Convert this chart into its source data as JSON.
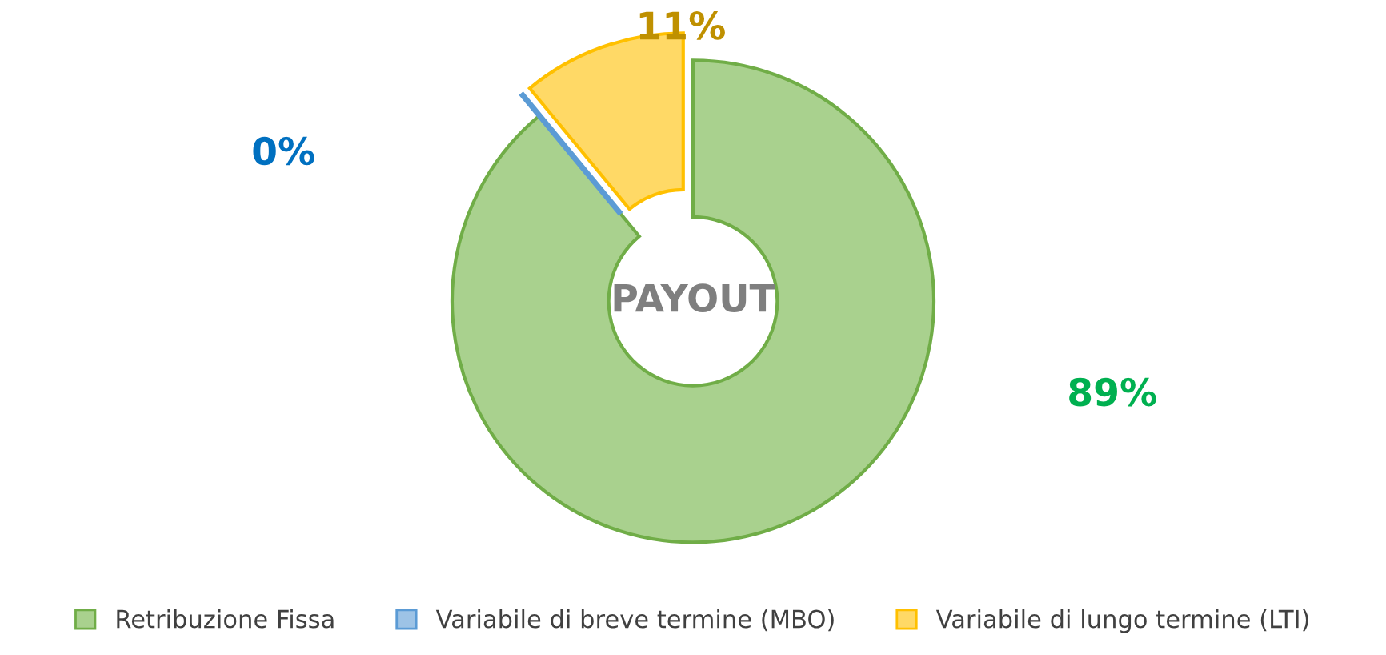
{
  "chart_data": {
    "type": "donut",
    "title": "PAYOUT",
    "categories": [
      "Retribuzione Fissa",
      "Variabile di breve termine (MBO)",
      "Variabile di lungo termine (LTI)"
    ],
    "values": [
      89,
      0,
      11
    ],
    "colors": [
      "#a9d18e",
      "#9dc3e6",
      "#ffd966"
    ],
    "value_labels": [
      "89%",
      "0%",
      "11%"
    ],
    "legend": "bottom"
  }
}
